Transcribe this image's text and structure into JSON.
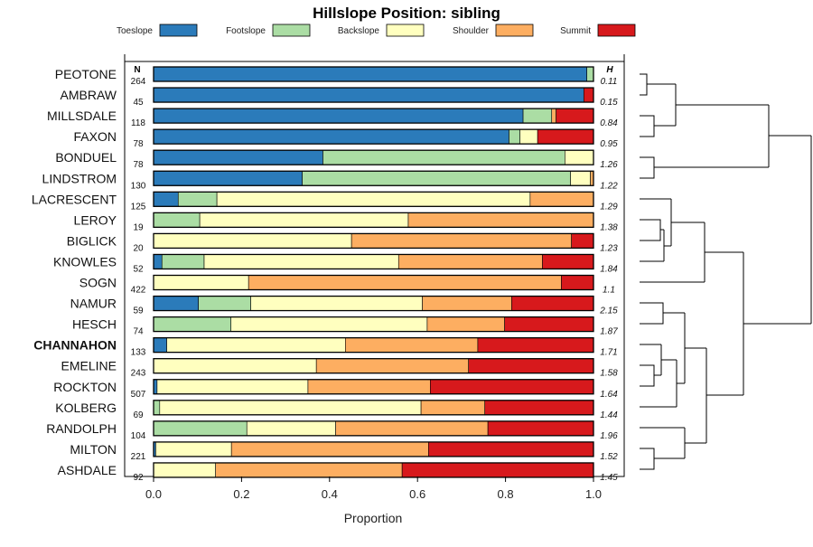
{
  "chart_data": {
    "type": "bar",
    "orientation": "horizontal",
    "stacked": true,
    "title": "Hillslope Position: sibling",
    "xlabel": "Proportion",
    "xlim": [
      0,
      1
    ],
    "xticks": [
      0,
      0.2,
      0.4,
      0.6,
      0.8,
      1
    ],
    "xtick_labels": [
      "0.0",
      "0.2",
      "0.4",
      "0.6",
      "0.8",
      "1.0"
    ],
    "n_header": "N",
    "h_header": "H",
    "highlight": "CHANNAHON",
    "legend": [
      {
        "name": "Toeslope",
        "color": "#2b7bba"
      },
      {
        "name": "Footslope",
        "color": "#abdda4"
      },
      {
        "name": "Backslope",
        "color": "#ffffbf"
      },
      {
        "name": "Shoulder",
        "color": "#fdae61"
      },
      {
        "name": "Summit",
        "color": "#d7191c"
      }
    ],
    "rows": [
      {
        "name": "PEOTONE",
        "n": "264",
        "h": "0.11",
        "values": [
          0.985,
          0.015,
          0,
          0,
          0
        ]
      },
      {
        "name": "AMBRAW",
        "n": "45",
        "h": "0.15",
        "values": [
          0.978,
          0,
          0,
          0,
          0.022
        ]
      },
      {
        "name": "MILLSDALE",
        "n": "118",
        "h": "0.84",
        "values": [
          0.84,
          0.065,
          0,
          0.01,
          0.085
        ]
      },
      {
        "name": "FAXON",
        "n": "78",
        "h": "0.95",
        "values": [
          0.808,
          0.025,
          0.04,
          0,
          0.127
        ]
      },
      {
        "name": "BONDUEL",
        "n": "78",
        "h": "1.26",
        "values": [
          0.385,
          0.55,
          0.065,
          0,
          0
        ]
      },
      {
        "name": "LINDSTROM",
        "n": "130",
        "h": "1.22",
        "values": [
          0.338,
          0.61,
          0.045,
          0.007,
          0
        ]
      },
      {
        "name": "LACRESCENT",
        "n": "125",
        "h": "1.29",
        "values": [
          0.056,
          0.088,
          0.712,
          0.144,
          0
        ]
      },
      {
        "name": "LEROY",
        "n": "19",
        "h": "1.38",
        "values": [
          0,
          0.105,
          0.474,
          0.421,
          0
        ]
      },
      {
        "name": "BIGLICK",
        "n": "20",
        "h": "1.23",
        "values": [
          0,
          0,
          0.45,
          0.5,
          0.05
        ]
      },
      {
        "name": "KNOWLES",
        "n": "52",
        "h": "1.84",
        "values": [
          0.019,
          0.096,
          0.442,
          0.327,
          0.116
        ]
      },
      {
        "name": "SOGN",
        "n": "422",
        "h": "1.1",
        "values": [
          0,
          0,
          0.216,
          0.711,
          0.073
        ]
      },
      {
        "name": "NAMUR",
        "n": "59",
        "h": "2.15",
        "values": [
          0.102,
          0.119,
          0.39,
          0.203,
          0.186
        ]
      },
      {
        "name": "HESCH",
        "n": "74",
        "h": "1.87",
        "values": [
          0,
          0.176,
          0.446,
          0.176,
          0.202
        ]
      },
      {
        "name": "CHANNAHON",
        "n": "133",
        "h": "1.71",
        "values": [
          0.03,
          0,
          0.406,
          0.301,
          0.263
        ]
      },
      {
        "name": "EMELINE",
        "n": "243",
        "h": "1.58",
        "values": [
          0,
          0,
          0.37,
          0.346,
          0.284
        ]
      },
      {
        "name": "ROCKTON",
        "n": "507",
        "h": "1.64",
        "values": [
          0.008,
          0,
          0.343,
          0.278,
          0.371
        ]
      },
      {
        "name": "KOLBERG",
        "n": "69",
        "h": "1.44",
        "values": [
          0,
          0.014,
          0.594,
          0.145,
          0.247
        ]
      },
      {
        "name": "RANDOLPH",
        "n": "104",
        "h": "1.96",
        "values": [
          0,
          0.212,
          0.202,
          0.346,
          0.24
        ]
      },
      {
        "name": "MILTON",
        "n": "221",
        "h": "1.52",
        "values": [
          0.005,
          0,
          0.172,
          0.448,
          0.375
        ]
      },
      {
        "name": "ASHDALE",
        "n": "92",
        "h": "1.45",
        "values": [
          0,
          0,
          0.141,
          0.424,
          0.435
        ]
      }
    ]
  }
}
